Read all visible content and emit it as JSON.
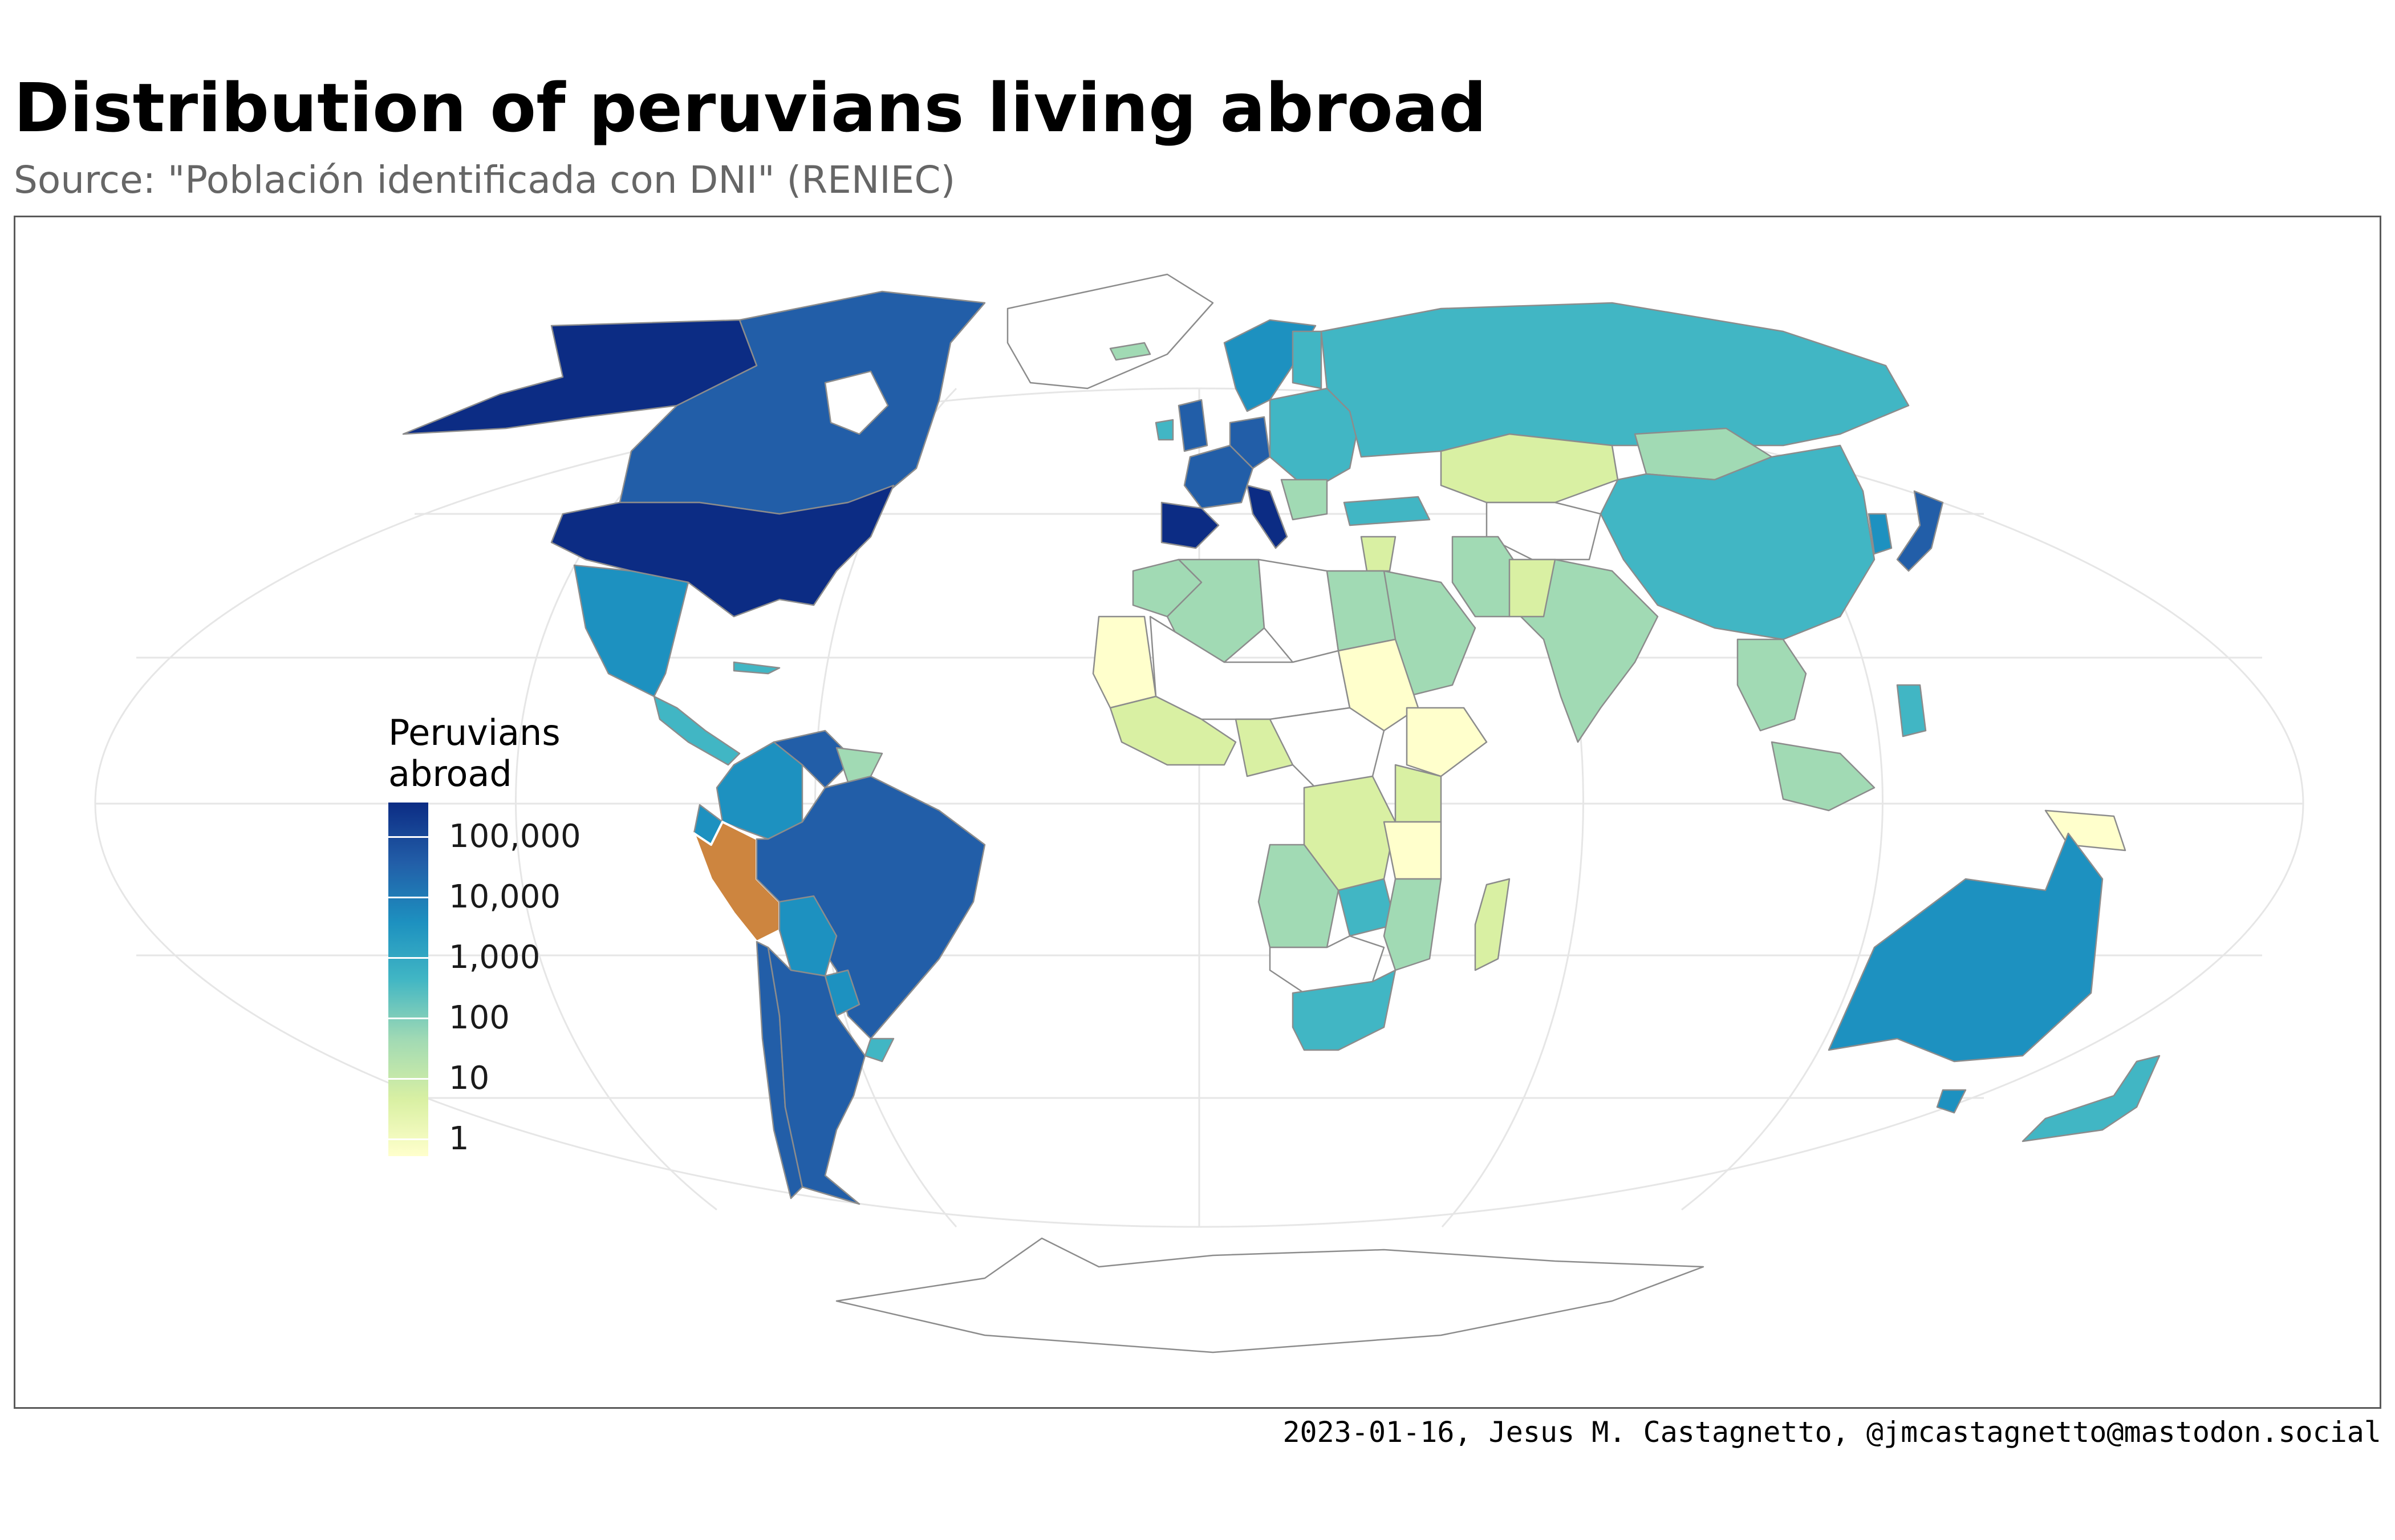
{
  "title": "Distribution of peruvians living abroad",
  "subtitle": "Source: \"Población identificada con DNI\" (RENIEC)",
  "caption": "2023-01-16, Jesus M. Castagnetto, @jmcastagnetto@mastodon.social",
  "legend": {
    "title": "Peruvians\nabroad",
    "scale": "log10",
    "breaks": [
      {
        "label": "100,000",
        "value": 100000
      },
      {
        "label": "10,000",
        "value": 10000
      },
      {
        "label": "1,000",
        "value": 1000
      },
      {
        "label": "100",
        "value": 100
      },
      {
        "label": "10",
        "value": 10
      },
      {
        "label": "1",
        "value": 1
      }
    ]
  },
  "colors": {
    "highlight_country": "#cd853f",
    "no_data": "#ffffff",
    "border": "#8c8c8c",
    "graticule": "#e6e6e6",
    "scale": [
      "#ffffcc",
      "#d9f0a3",
      "#a1dab4",
      "#41b6c4",
      "#1d91c0",
      "#225ea8",
      "#0c2c84"
    ]
  }
}
